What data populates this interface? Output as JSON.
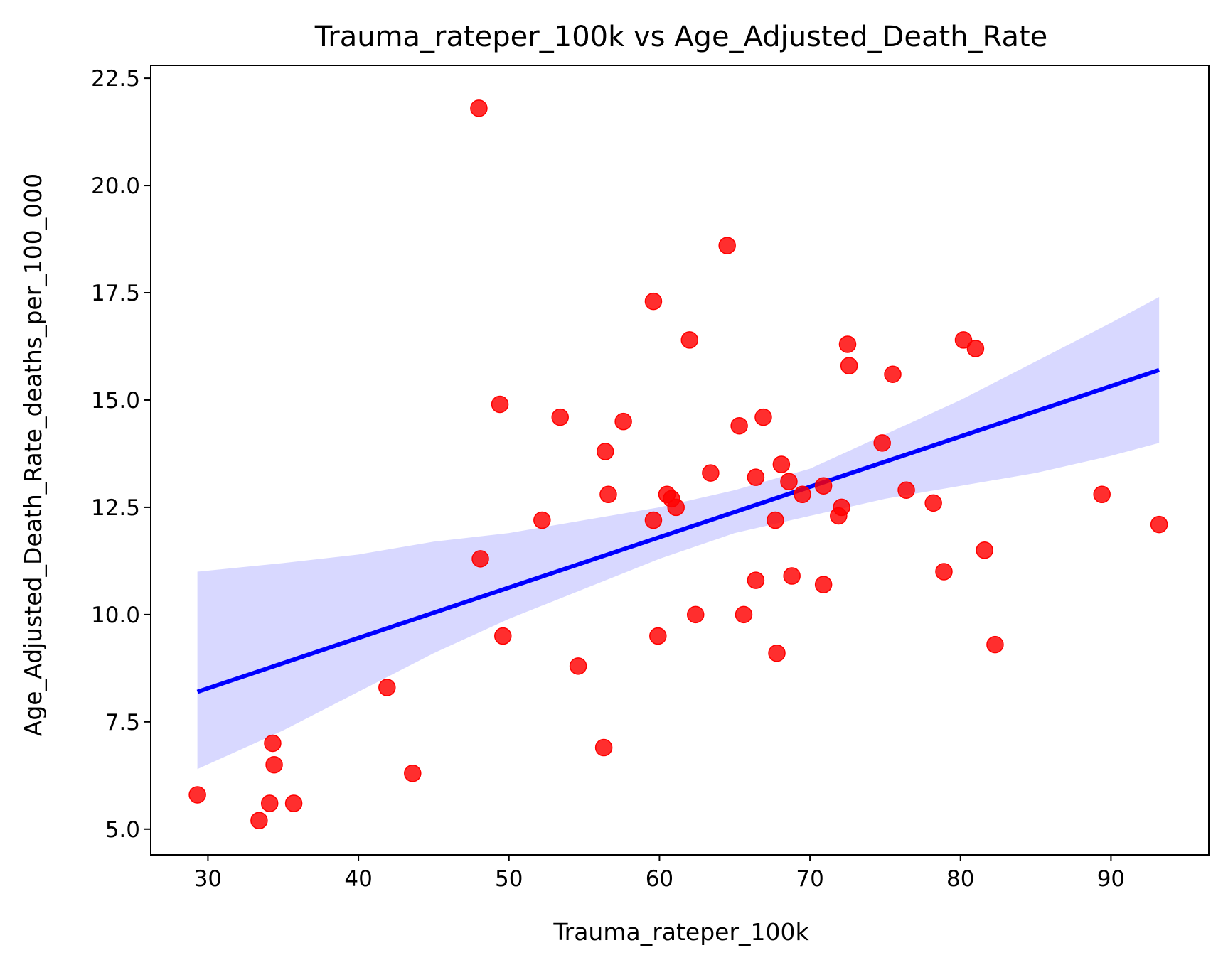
{
  "chart_data": {
    "type": "scatter",
    "title": "Trauma_rateper_100k vs Age_Adjusted_Death_Rate",
    "xlabel": "Trauma_rateper_100k",
    "ylabel": "Age_Adjusted_Death_Rate_deaths_per_100_000",
    "xlim": [
      26.2,
      96.5
    ],
    "ylim": [
      4.4,
      22.8
    ],
    "xticks": [
      30,
      40,
      50,
      60,
      70,
      80,
      90
    ],
    "xtick_labels": [
      "30",
      "40",
      "50",
      "60",
      "70",
      "80",
      "90"
    ],
    "yticks": [
      5.0,
      7.5,
      10.0,
      12.5,
      15.0,
      17.5,
      20.0,
      22.5
    ],
    "ytick_labels": [
      "5.0",
      "7.5",
      "10.0",
      "12.5",
      "15.0",
      "17.5",
      "20.0",
      "22.5"
    ],
    "grid": false,
    "colors": {
      "points": "#ff0000",
      "line": "#0000ff",
      "band": "#d8d8ff"
    },
    "points": [
      [
        29.3,
        5.8
      ],
      [
        33.4,
        5.2
      ],
      [
        34.1,
        5.6
      ],
      [
        34.3,
        7.0
      ],
      [
        34.4,
        6.5
      ],
      [
        35.7,
        5.6
      ],
      [
        41.9,
        8.3
      ],
      [
        43.6,
        6.3
      ],
      [
        48.0,
        21.8
      ],
      [
        48.1,
        11.3
      ],
      [
        49.4,
        14.9
      ],
      [
        49.6,
        9.5
      ],
      [
        52.2,
        12.2
      ],
      [
        53.4,
        14.6
      ],
      [
        54.6,
        8.8
      ],
      [
        56.3,
        6.9
      ],
      [
        56.4,
        13.8
      ],
      [
        56.6,
        12.8
      ],
      [
        57.6,
        14.5
      ],
      [
        59.6,
        17.3
      ],
      [
        59.6,
        12.2
      ],
      [
        59.9,
        9.5
      ],
      [
        60.5,
        12.8
      ],
      [
        60.8,
        12.7
      ],
      [
        61.1,
        12.5
      ],
      [
        62.0,
        16.4
      ],
      [
        62.4,
        10.0
      ],
      [
        63.4,
        13.3
      ],
      [
        64.5,
        18.6
      ],
      [
        65.3,
        14.4
      ],
      [
        65.6,
        10.0
      ],
      [
        66.4,
        13.2
      ],
      [
        66.4,
        10.8
      ],
      [
        66.9,
        14.6
      ],
      [
        67.7,
        12.2
      ],
      [
        67.8,
        9.1
      ],
      [
        68.1,
        13.5
      ],
      [
        68.6,
        13.1
      ],
      [
        68.8,
        10.9
      ],
      [
        69.5,
        12.8
      ],
      [
        70.9,
        13.0
      ],
      [
        70.9,
        10.7
      ],
      [
        71.9,
        12.3
      ],
      [
        72.1,
        12.5
      ],
      [
        72.5,
        16.3
      ],
      [
        72.6,
        15.8
      ],
      [
        74.8,
        14.0
      ],
      [
        75.5,
        15.6
      ],
      [
        76.4,
        12.9
      ],
      [
        78.2,
        12.6
      ],
      [
        78.9,
        11.0
      ],
      [
        80.2,
        16.4
      ],
      [
        81.0,
        16.2
      ],
      [
        81.6,
        11.5
      ],
      [
        82.3,
        9.3
      ],
      [
        89.4,
        12.8
      ],
      [
        93.2,
        12.1
      ]
    ],
    "regression": {
      "x": [
        29.3,
        93.2
      ],
      "y": [
        8.2,
        15.7
      ]
    },
    "confidence_band": {
      "x": [
        29.3,
        35,
        40,
        45,
        50,
        55,
        60,
        65,
        70,
        75,
        80,
        85,
        90,
        93.2
      ],
      "upper": [
        11.0,
        11.2,
        11.4,
        11.7,
        11.9,
        12.2,
        12.5,
        12.9,
        13.4,
        14.2,
        15.0,
        15.9,
        16.8,
        17.4
      ],
      "lower": [
        6.4,
        7.3,
        8.2,
        9.1,
        9.9,
        10.6,
        11.3,
        11.9,
        12.3,
        12.7,
        13.0,
        13.3,
        13.7,
        14.0
      ]
    }
  }
}
